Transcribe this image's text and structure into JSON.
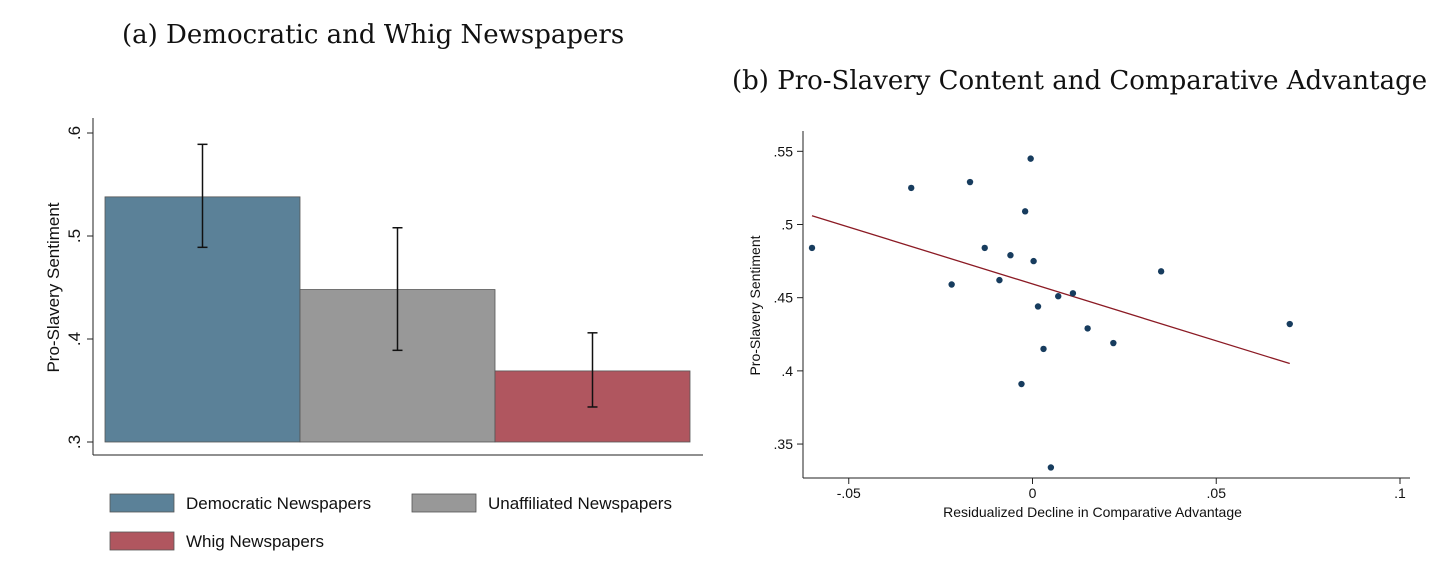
{
  "chart_data": [
    {
      "type": "bar",
      "title": "(a) Democratic and Whig Newspapers",
      "ylabel": "Pro-Slavery Sentiment",
      "xlabel": "",
      "ylim": [
        0.3,
        0.6
      ],
      "yticks": [
        ".3",
        ".4",
        ".5",
        ".6"
      ],
      "ytick_values": [
        0.3,
        0.4,
        0.5,
        0.6
      ],
      "grid": false,
      "legend_position": "bottom",
      "bars": [
        {
          "name": "Democratic Newspapers",
          "value": 0.538,
          "ci_low": 0.489,
          "ci_high": 0.589,
          "color": "#5b8198"
        },
        {
          "name": "Unaffiliated Newspapers",
          "value": 0.448,
          "ci_low": 0.389,
          "ci_high": 0.508,
          "color": "#989898"
        },
        {
          "name": "Whig Newspapers",
          "value": 0.369,
          "ci_low": 0.334,
          "ci_high": 0.406,
          "color": "#b0565f"
        }
      ]
    },
    {
      "type": "scatter",
      "title": "(b) Pro-Slavery Content and Comparative Advantage",
      "xlabel": "Residualized Decline in Comparative Advantage",
      "ylabel": "Pro-Slavery Sentiment",
      "xlim": [
        -0.06,
        0.1
      ],
      "ylim": [
        0.335,
        0.555
      ],
      "xticks": [
        "-.05",
        "0",
        ".05",
        ".1"
      ],
      "xtick_values": [
        -0.05,
        0,
        0.05,
        0.1
      ],
      "yticks": [
        ".35",
        ".4",
        ".45",
        ".5",
        ".55"
      ],
      "ytick_values": [
        0.35,
        0.4,
        0.45,
        0.5,
        0.55
      ],
      "grid": false,
      "point_color": "#173c5e",
      "line_color": "#8b1a24",
      "points": [
        {
          "x": -0.06,
          "y": 0.484
        },
        {
          "x": -0.033,
          "y": 0.525
        },
        {
          "x": -0.017,
          "y": 0.529
        },
        {
          "x": -0.022,
          "y": 0.459
        },
        {
          "x": -0.013,
          "y": 0.484
        },
        {
          "x": -0.009,
          "y": 0.462
        },
        {
          "x": -0.006,
          "y": 0.479
        },
        {
          "x": -0.003,
          "y": 0.391
        },
        {
          "x": -0.002,
          "y": 0.509
        },
        {
          "x": -0.0005,
          "y": 0.545
        },
        {
          "x": 0.0003,
          "y": 0.475
        },
        {
          "x": 0.0015,
          "y": 0.444
        },
        {
          "x": 0.003,
          "y": 0.415
        },
        {
          "x": 0.005,
          "y": 0.334
        },
        {
          "x": 0.007,
          "y": 0.451
        },
        {
          "x": 0.011,
          "y": 0.453
        },
        {
          "x": 0.015,
          "y": 0.429
        },
        {
          "x": 0.022,
          "y": 0.419
        },
        {
          "x": 0.035,
          "y": 0.468
        },
        {
          "x": 0.07,
          "y": 0.432
        }
      ],
      "fit_line": {
        "x1": -0.06,
        "y1": 0.506,
        "x2": 0.07,
        "y2": 0.405
      }
    }
  ]
}
